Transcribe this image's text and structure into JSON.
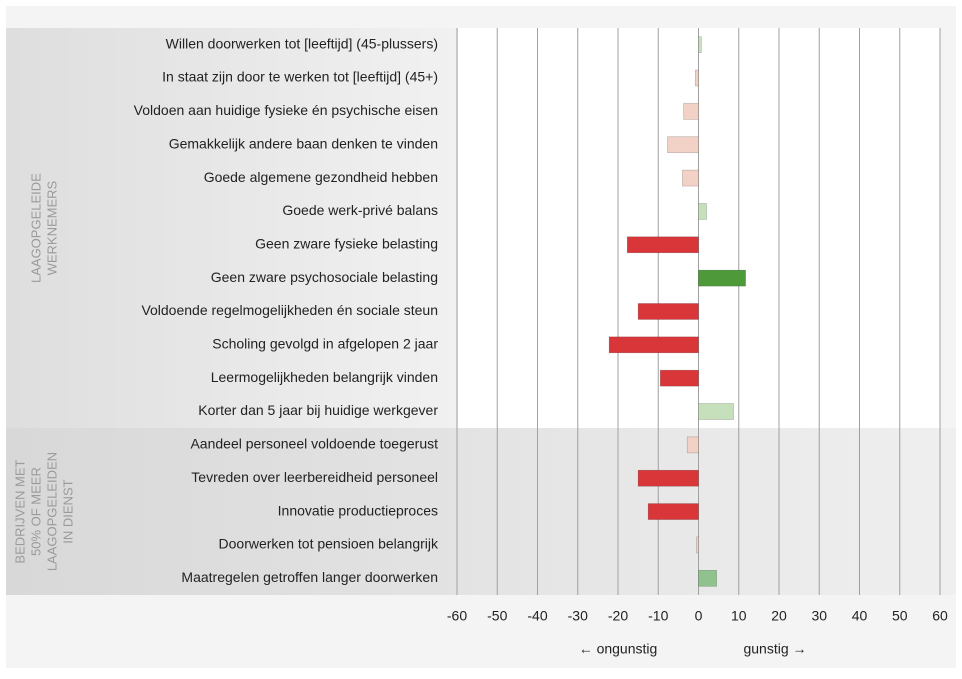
{
  "chart_data": {
    "type": "bar",
    "orientation": "horizontal",
    "groups": [
      {
        "lines": [
          "LAAGOPGELEIDE",
          "WERKNEMERS"
        ],
        "categories": [
          "Willen doorwerken tot [leeftijd] (45-plussers)",
          "In staat zijn door te werken tot [leeftijd] (45+)",
          "Voldoen aan huidige fysieke én psychische eisen",
          "Gemakkelijk andere baan denken te vinden",
          "Goede algemene gezondheid hebben",
          "Goede werk-privé balans",
          "Geen zware fysieke belasting",
          "Geen zware psychosociale belasting",
          "Voldoende regelmogelijkheden én sociale steun",
          "Scholing gevolgd in afgelopen 2 jaar",
          "Leermogelijkheden belangrijk vinden",
          "Korter dan 5 jaar bij huidige werkgever"
        ],
        "values": [
          0.7,
          -0.8,
          -3.7,
          -7.7,
          -4,
          2,
          -17.7,
          11.7,
          -15,
          -22.2,
          -9.5,
          8.7
        ],
        "colors": [
          "#c9dfc0",
          "#f2d1c6",
          "#f2d1c6",
          "#f2d1c6",
          "#f2d1c6",
          "#c5e0bb",
          "#d9363a",
          "#4e9a3a",
          "#d9363a",
          "#d9363a",
          "#d9363a",
          "#c5e0bb"
        ]
      },
      {
        "lines": [
          "BEDRIJVEN MET",
          "50% OF MEER",
          "LAAGOPGELEIDEN",
          "IN DIENST"
        ],
        "categories": [
          "Aandeel personeel voldoende toegerust",
          "Tevreden over leerbereidheid personeel",
          "Innovatie productieproces",
          "Doorwerken tot pensioen belangrijk",
          "Maatregelen getroffen langer doorwerken"
        ],
        "values": [
          -2.8,
          -15,
          -12.5,
          -0.5,
          4.5
        ],
        "colors": [
          "#f2d1c6",
          "#d9363a",
          "#d9363a",
          "#f2d1c6",
          "#8fc28c"
        ]
      }
    ],
    "xlim": [
      -60,
      60
    ],
    "xticks": [
      -60,
      -50,
      -40,
      -30,
      -20,
      -10,
      0,
      10,
      20,
      30,
      40,
      50,
      60
    ],
    "grid": true,
    "annotations": [
      "← ongunstig",
      "gunstig →"
    ]
  }
}
